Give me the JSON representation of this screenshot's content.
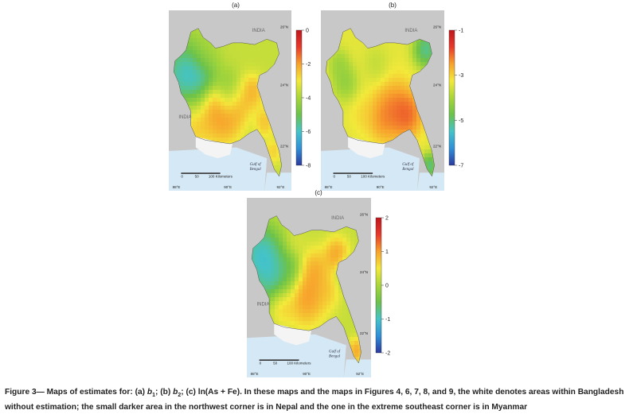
{
  "panels": [
    {
      "label": "(a)",
      "country_labels": [
        "INDIA",
        "INDIA"
      ],
      "lat_ticks": [
        "26°N",
        "24°N",
        "22°N"
      ],
      "lon_ticks": [
        "88°E",
        "90°E",
        "92°E"
      ],
      "bay_label": [
        "Gulf of",
        "Bengal"
      ],
      "scale_ticks": [
        "0",
        "50",
        "100 Kilometers"
      ],
      "colorbar": {
        "ticks": [
          "0",
          "-2",
          "-4",
          "-6",
          "-8"
        ],
        "min": -8,
        "max": 0
      }
    },
    {
      "label": "(b)",
      "country_labels": [
        "INDIA"
      ],
      "lat_ticks": [
        "26°N",
        "24°N",
        "22°N"
      ],
      "lon_ticks": [
        "88°E",
        "90°E",
        "92°E"
      ],
      "bay_label": [
        "Gulf of",
        "Bengal"
      ],
      "scale_ticks": [
        "0",
        "50",
        "100 Kilometers"
      ],
      "colorbar": {
        "ticks": [
          "-1",
          "-3",
          "-5",
          "-7"
        ],
        "min": -7,
        "max": -1
      }
    },
    {
      "label": "(c)",
      "country_labels": [
        "INDIA",
        "INDIA"
      ],
      "lat_ticks": [
        "26°N",
        "24°N",
        "22°N"
      ],
      "lon_ticks": [
        "88°E",
        "90°E",
        "92°E"
      ],
      "bay_label": [
        "Gulf of",
        "Bengal"
      ],
      "scale_ticks": [
        "0",
        "50",
        "100 Kilometers"
      ],
      "colorbar": {
        "ticks": [
          "2",
          "1",
          "0",
          "-1",
          "-2"
        ],
        "min": -2,
        "max": 2
      }
    }
  ],
  "colors": {
    "land_outside": "#c8c8c8",
    "sea": "#d4e8f5",
    "scale": [
      "#2b3a9e",
      "#2f8fd8",
      "#44c3c9",
      "#6cc24a",
      "#a8d63a",
      "#f3e93a",
      "#f7a22c",
      "#e8392b",
      "#c0161d"
    ]
  },
  "caption": {
    "prefix": "Figure 3— Maps of estimates for: (a) ",
    "b1": "b",
    "b1_sub": "1",
    "mid": "; (b) ",
    "b2": "b",
    "b2_sub": "2",
    "rest": "; (c) ln(As + Fe). In these maps and the maps in Figures 4, 6, 7, 8, and 9, the white denotes areas within Bangladesh without estimation; the small darker area in the northwest corner is in Nepal and the one in the extreme southeast corner is in Myanmar"
  }
}
